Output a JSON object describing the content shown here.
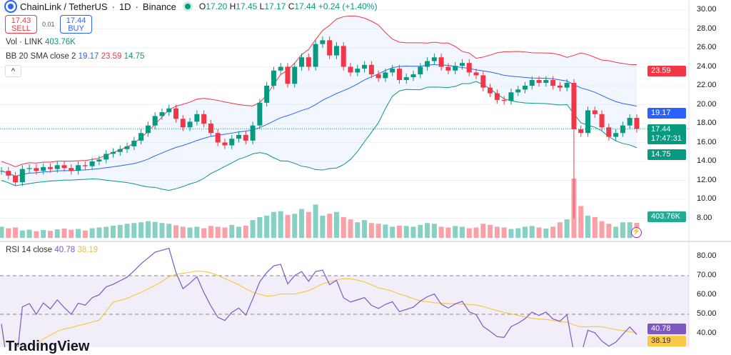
{
  "header": {
    "symbol": "ChainLink / TetherUS",
    "interval": "1D",
    "exchange": "Binance",
    "open": "17.20",
    "high": "17.45",
    "low": "17.17",
    "close": "17.44",
    "change": "+0.24 (+1.40%)"
  },
  "trade": {
    "sell_price": "17.43",
    "sell_label": "SELL",
    "spread": "0.01",
    "buy_price": "17.44",
    "buy_label": "BUY"
  },
  "volume_legend": {
    "label": "Vol · LINK",
    "value": "403.76K"
  },
  "bb_legend": {
    "label": "BB 20 SMA close 2",
    "basis": "19.17",
    "upper": "23.59",
    "lower": "14.75"
  },
  "rsi_legend": {
    "label": "RSI 14 close",
    "rsi": "40.78",
    "ma": "38.19"
  },
  "logo_text": "TradingView",
  "tags": {
    "upper": "23.59",
    "basis": "19.17",
    "price": "17.44",
    "countdown": "17:47:31",
    "lower": "14.75",
    "volume": "403.76K",
    "rsi": "40.78",
    "rsi_ma": "38.19"
  },
  "colors": {
    "up": "#089981",
    "down": "#f23645",
    "bb_upper": "#f23645",
    "bb_basis": "#2962ff",
    "bb_lower": "#089981",
    "rsi": "#7e57c2",
    "rsi_ma": "#f7c948"
  },
  "chart_data": {
    "type": "candlestick",
    "price_ticks": [
      "30.00",
      "28.00",
      "26.00",
      "24.00",
      "22.00",
      "20.00",
      "18.00",
      "16.00",
      "14.00",
      "12.00",
      "10.00",
      "8.00"
    ],
    "price_range": [
      7.96,
      30
    ],
    "rsi_ticks": [
      "80.00",
      "70.00",
      "60.00",
      "50.00",
      "40.00"
    ],
    "rsi_levels": [
      70,
      50
    ],
    "close": [
      13.0,
      12.5,
      11.8,
      13.2,
      13.3,
      13.0,
      13.4,
      13.2,
      13.6,
      13.3,
      13.0,
      13.6,
      13.5,
      14.0,
      14.2,
      14.8,
      15.0,
      15.3,
      15.6,
      16.2,
      17.0,
      17.8,
      18.8,
      19.2,
      19.6,
      18.5,
      17.6,
      18.2,
      19.0,
      18.0,
      17.0,
      16.0,
      15.7,
      16.4,
      16.8,
      16.2,
      17.8,
      20.2,
      22.0,
      23.6,
      24.0,
      22.2,
      24.0,
      25.0,
      24.0,
      26.4,
      26.8,
      25.2,
      26.2,
      24.0,
      23.4,
      23.8,
      24.2,
      23.2,
      22.8,
      23.4,
      23.8,
      22.6,
      22.9,
      23.2,
      24.0,
      24.6,
      25.0,
      24.0,
      23.6,
      24.1,
      24.4,
      23.4,
      23.1,
      21.8,
      21.2,
      20.5,
      20.4,
      21.3,
      21.6,
      22.0,
      22.6,
      22.3,
      22.6,
      22.0,
      21.8,
      22.3,
      17.4,
      17.0,
      19.4,
      19.0,
      17.6,
      16.6,
      17.0,
      17.8,
      18.6,
      17.44
    ],
    "volume_k": [
      300,
      260,
      280,
      200,
      220,
      180,
      210,
      190,
      230,
      250,
      220,
      240,
      200,
      260,
      280,
      300,
      330,
      350,
      380,
      400,
      420,
      450,
      430,
      400,
      380,
      340,
      300,
      280,
      300,
      260,
      320,
      300,
      280,
      350,
      300,
      330,
      480,
      560,
      600,
      700,
      720,
      620,
      650,
      780,
      700,
      900,
      600,
      650,
      700,
      560,
      500,
      420,
      480,
      400,
      380,
      360,
      300,
      330,
      320,
      300,
      350,
      400,
      380,
      300,
      280,
      320,
      300,
      260,
      280,
      380,
      350,
      300,
      280,
      240,
      260,
      300,
      320,
      280,
      250,
      300,
      420,
      500,
      1600,
      860,
      600,
      560,
      450,
      380,
      300,
      420,
      420,
      403.76
    ]
  }
}
